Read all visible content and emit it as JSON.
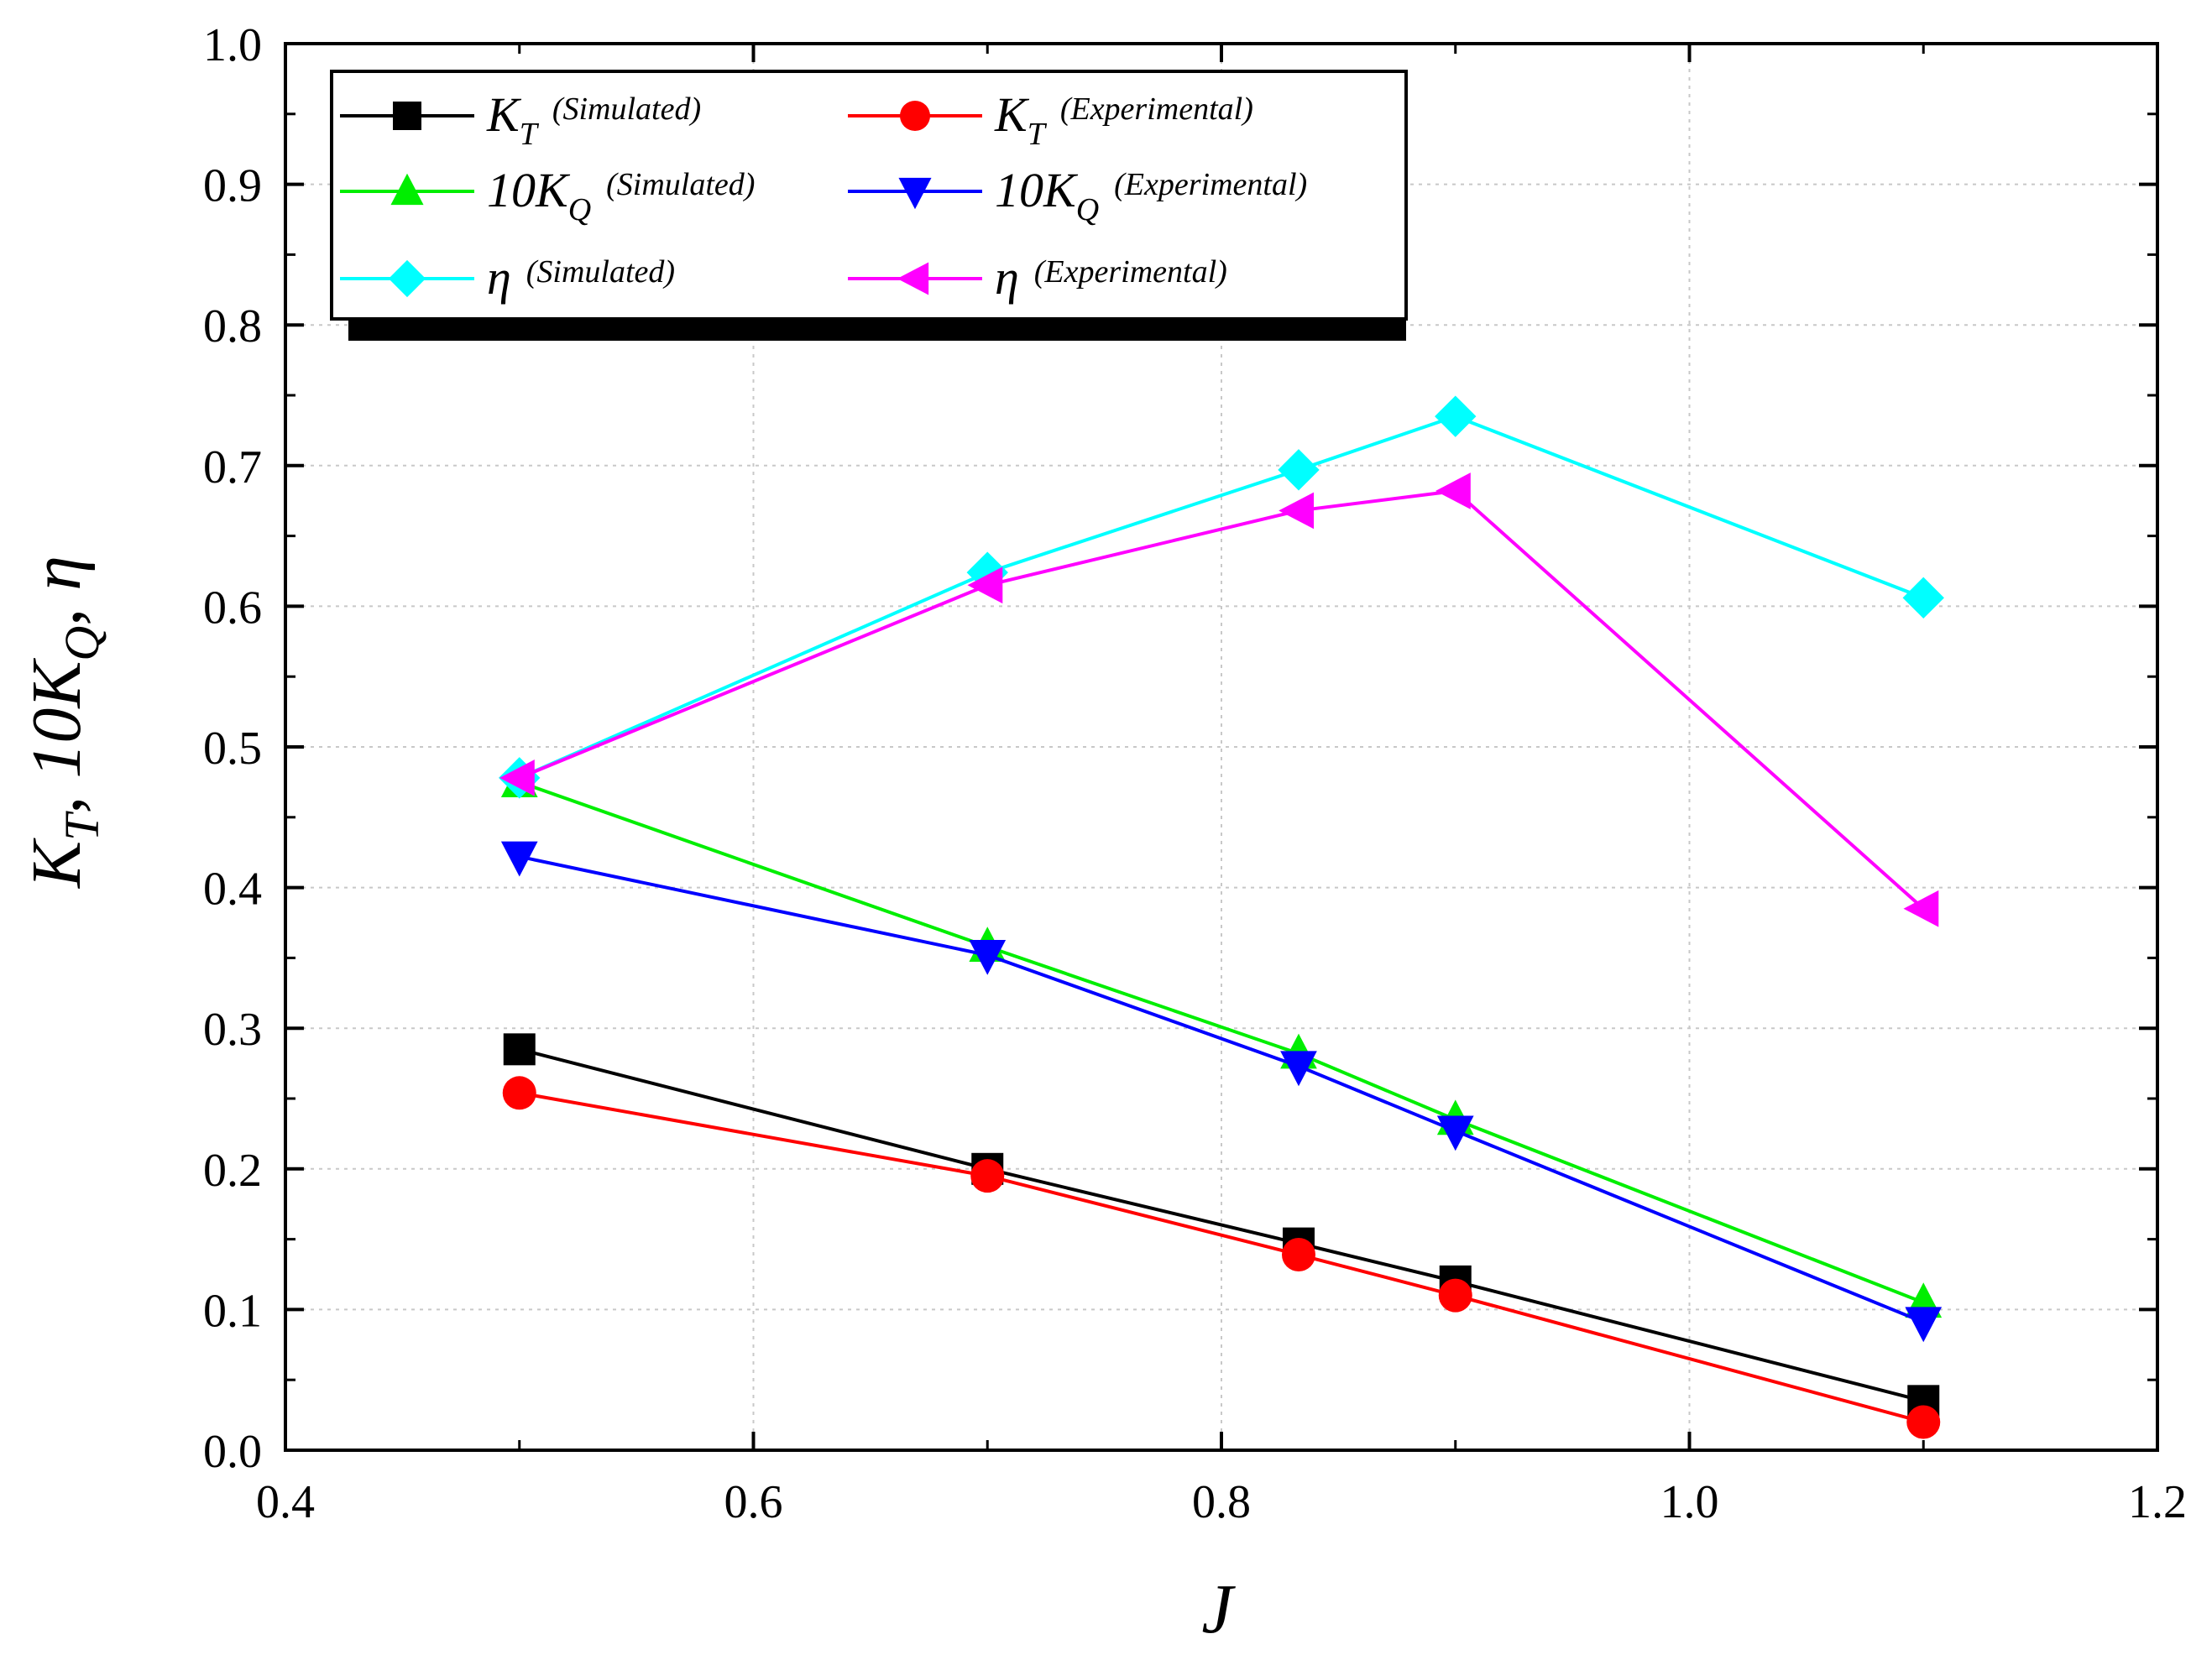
{
  "chart_data": {
    "type": "line",
    "title": "",
    "xlabel": "J",
    "ylabel": {
      "sym1": "K",
      "sub1": "T",
      "sep1": ",  ",
      "sym2": "10K",
      "sub2": "Q",
      "sep2": ",  ",
      "sym3": "η"
    },
    "xlim": [
      0.4,
      1.2
    ],
    "ylim": [
      0.0,
      1.0
    ],
    "x_ticks": [
      "0.4",
      "0.6",
      "0.8",
      "1.0",
      "1.2"
    ],
    "y_ticks": [
      "0.0",
      "0.1",
      "0.2",
      "0.3",
      "0.4",
      "0.5",
      "0.6",
      "0.7",
      "0.8",
      "0.9",
      "1.0"
    ],
    "grid": true,
    "legend_position": "top-left",
    "series": [
      {
        "id": "kt-sim",
        "symbol": "K",
        "sub": "T",
        "note": "(Simulated)",
        "color": "#000000",
        "marker": "square",
        "x": [
          0.5,
          0.7,
          0.833,
          0.9,
          1.1
        ],
        "values": [
          0.285,
          0.2,
          0.147,
          0.12,
          0.035
        ]
      },
      {
        "id": "kt-exp",
        "symbol": "K",
        "sub": "T",
        "note": "(Experimental)",
        "color": "#ff0000",
        "marker": "circle",
        "x": [
          0.5,
          0.7,
          0.833,
          0.9,
          1.1
        ],
        "values": [
          0.254,
          0.195,
          0.139,
          0.11,
          0.02
        ]
      },
      {
        "id": "kq-sim",
        "symbol": "10K",
        "sub": "Q",
        "note": "(Simulated)",
        "color": "#00ee00",
        "marker": "triangle-up",
        "x": [
          0.5,
          0.7,
          0.833,
          0.9,
          1.1
        ],
        "values": [
          0.475,
          0.358,
          0.282,
          0.235,
          0.105
        ]
      },
      {
        "id": "kq-exp",
        "symbol": "10K",
        "sub": "Q",
        "note": "(Experimental)",
        "color": "#0000ff",
        "marker": "triangle-down",
        "x": [
          0.5,
          0.7,
          0.833,
          0.9,
          1.1
        ],
        "values": [
          0.422,
          0.352,
          0.273,
          0.227,
          0.091
        ]
      },
      {
        "id": "eta-sim",
        "symbol": "η",
        "sub": "",
        "note": "(Simulated)",
        "color": "#00ffff",
        "marker": "diamond",
        "x": [
          0.5,
          0.7,
          0.833,
          0.9,
          1.1
        ],
        "values": [
          0.478,
          0.624,
          0.697,
          0.735,
          0.606
        ]
      },
      {
        "id": "eta-exp",
        "symbol": "η",
        "sub": "",
        "note": "(Experimental)",
        "color": "#ff00ff",
        "marker": "triangle-left",
        "x": [
          0.5,
          0.7,
          0.833,
          0.9,
          1.1
        ],
        "values": [
          0.478,
          0.615,
          0.668,
          0.682,
          0.385
        ]
      }
    ]
  }
}
